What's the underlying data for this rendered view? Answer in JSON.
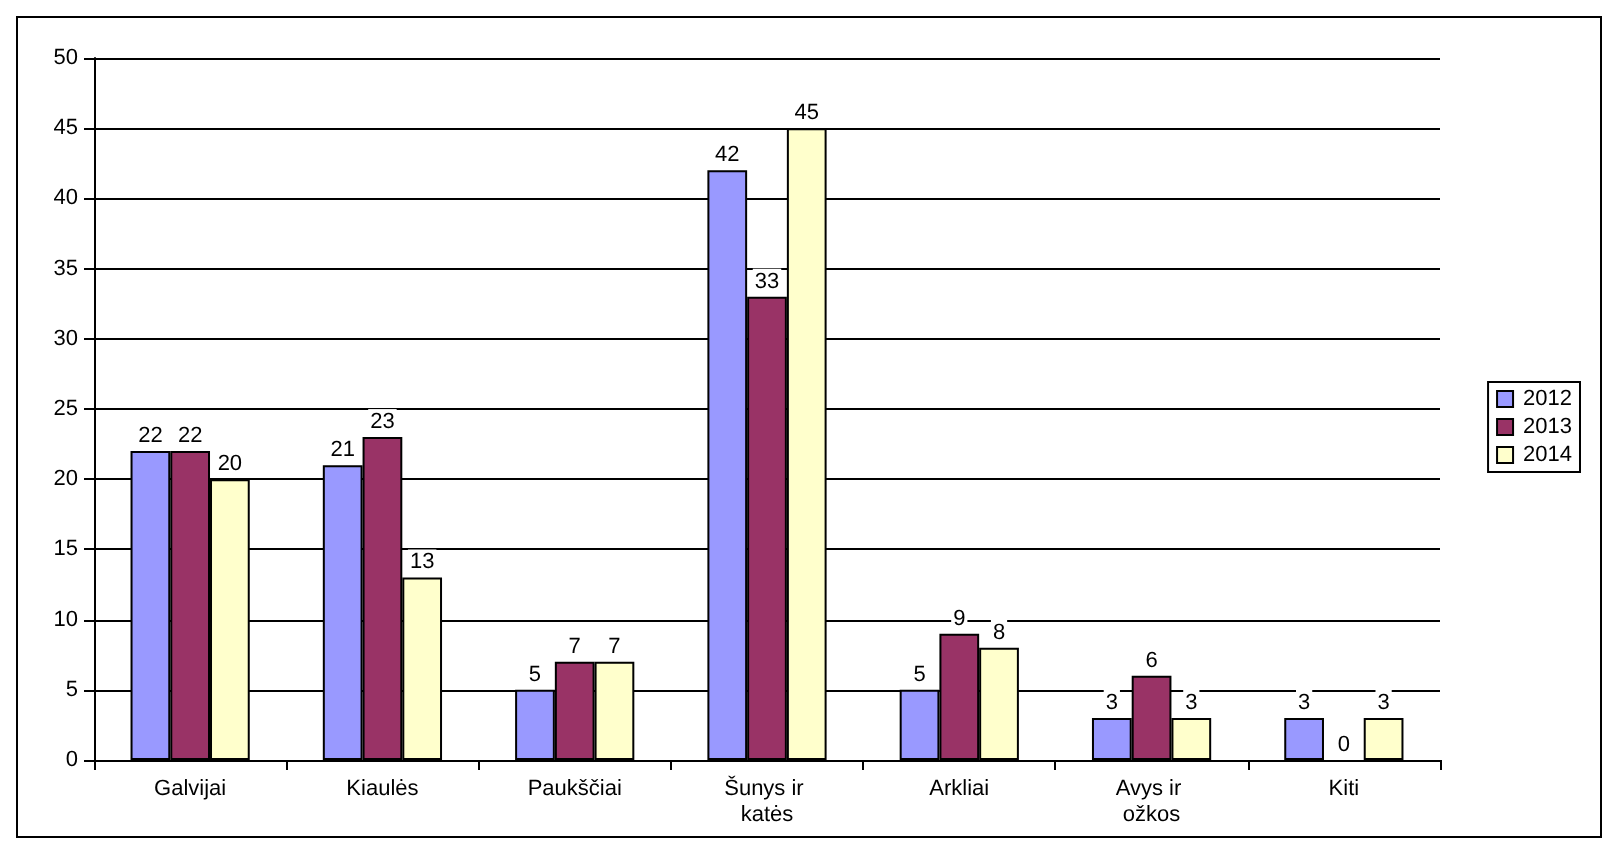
{
  "chart_data": {
    "type": "bar",
    "categories": [
      "Galvijai",
      "Kiaulės",
      "Paukščiai",
      "Šunys ir katės",
      "Arkliai",
      "Avys ir ožkos",
      "Kiti"
    ],
    "series": [
      {
        "name": "2012",
        "color": "#9999ff",
        "values": [
          22,
          21,
          5,
          42,
          5,
          3,
          3
        ]
      },
      {
        "name": "2013",
        "color": "#993366",
        "values": [
          22,
          23,
          7,
          33,
          9,
          6,
          0
        ]
      },
      {
        "name": "2014",
        "color": "#ffffcc",
        "values": [
          20,
          13,
          7,
          45,
          8,
          3,
          3
        ]
      }
    ],
    "ylim": [
      0,
      50
    ],
    "yticks": [
      0,
      5,
      10,
      15,
      20,
      25,
      30,
      35,
      40,
      45,
      50
    ],
    "grid": "y",
    "legend": "right",
    "data_labels": true
  }
}
